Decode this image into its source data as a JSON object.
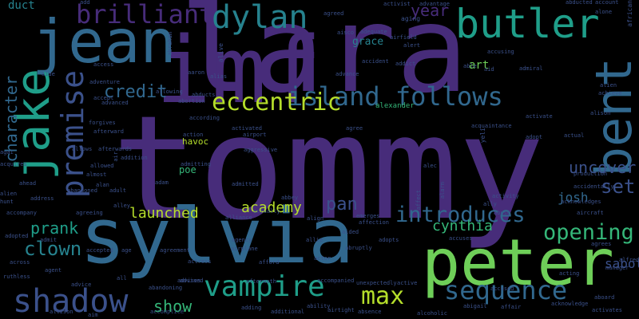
{
  "palette": {
    "purple": "#472c7a",
    "indigo": "#3b518b",
    "blue": "#31688e",
    "teal": "#26828e",
    "green": "#1f9e89",
    "mint": "#35b779",
    "lime": "#6ece58",
    "yellowgreen": "#b5de2b",
    "deep": "#440154"
  },
  "words": [
    {
      "text": "tommy",
      "color": "purple"
    },
    {
      "text": "lara",
      "color": "purple"
    },
    {
      "text": "imf",
      "color": "purple"
    },
    {
      "text": "sylvia",
      "color": "blue"
    },
    {
      "text": "peter",
      "color": "lime"
    },
    {
      "text": "jean",
      "color": "blue"
    },
    {
      "text": "jake",
      "color": "green"
    },
    {
      "text": "bent",
      "color": "blue"
    },
    {
      "text": "butler",
      "color": "green"
    },
    {
      "text": "dylan",
      "color": "teal"
    },
    {
      "text": "brilliant",
      "color": "purple"
    },
    {
      "text": "premise",
      "color": "indigo"
    },
    {
      "text": "island follows",
      "color": "blue"
    },
    {
      "text": "eccentric",
      "color": "yellowgreen"
    },
    {
      "text": "vampire",
      "color": "green"
    },
    {
      "text": "shadow",
      "color": "indigo"
    },
    {
      "text": "sequence",
      "color": "blue"
    },
    {
      "text": "introduces",
      "color": "blue"
    },
    {
      "text": "opening",
      "color": "mint"
    },
    {
      "text": "max",
      "color": "yellowgreen"
    },
    {
      "text": "uncover",
      "color": "indigo"
    },
    {
      "text": "credit",
      "color": "blue"
    },
    {
      "text": "character",
      "color": "blue"
    },
    {
      "text": "clown",
      "color": "teal"
    },
    {
      "text": "pan",
      "color": "indigo"
    },
    {
      "text": "year",
      "color": "purple"
    },
    {
      "text": "set",
      "color": "indigo"
    },
    {
      "text": "show",
      "color": "mint"
    },
    {
      "text": "prank",
      "color": "green"
    },
    {
      "text": "launched",
      "color": "yellowgreen"
    },
    {
      "text": "academy",
      "color": "yellowgreen"
    },
    {
      "text": "cynthia",
      "color": "mint"
    },
    {
      "text": "josh",
      "color": "blue"
    },
    {
      "text": "sabotage",
      "color": "indigo"
    },
    {
      "text": "duct",
      "color": "teal"
    },
    {
      "text": "grace",
      "color": "teal"
    },
    {
      "text": "art",
      "color": "lime"
    },
    {
      "text": "poe",
      "color": "mint"
    },
    {
      "text": "havoc",
      "color": "yellowgreen"
    },
    {
      "text": "alexander",
      "color": "mint"
    },
    {
      "text": "african",
      "color": "indigo"
    },
    {
      "text": "aging",
      "color": "indigo"
    },
    {
      "text": "activist",
      "color": "indigo"
    },
    {
      "text": "advantage",
      "color": "indigo"
    },
    {
      "text": "abducted",
      "color": "indigo"
    },
    {
      "text": "account",
      "color": "indigo"
    },
    {
      "text": "alone",
      "color": "indigo"
    },
    {
      "text": "agreed",
      "color": "indigo"
    },
    {
      "text": "airfield",
      "color": "indigo"
    },
    {
      "text": "alert",
      "color": "indigo"
    },
    {
      "text": "accident",
      "color": "indigo"
    },
    {
      "text": "accusing",
      "color": "indigo"
    },
    {
      "text": "admiral",
      "color": "indigo"
    },
    {
      "text": "able",
      "color": "indigo"
    },
    {
      "text": "aid",
      "color": "indigo"
    },
    {
      "text": "alien",
      "color": "indigo"
    },
    {
      "text": "achieve",
      "color": "indigo"
    },
    {
      "text": "alison",
      "color": "indigo"
    },
    {
      "text": "access",
      "color": "indigo"
    },
    {
      "text": "aide",
      "color": "indigo"
    },
    {
      "text": "addict",
      "color": "indigo"
    },
    {
      "text": "advance",
      "color": "indigo"
    },
    {
      "text": "alias",
      "color": "indigo"
    },
    {
      "text": "adventure",
      "color": "indigo"
    },
    {
      "text": "accept",
      "color": "indigo"
    },
    {
      "text": "advanced",
      "color": "indigo"
    },
    {
      "text": "abducts",
      "color": "indigo"
    },
    {
      "text": "allowing",
      "color": "indigo"
    },
    {
      "text": "abortion",
      "color": "indigo"
    },
    {
      "text": "activated",
      "color": "indigo"
    },
    {
      "text": "according",
      "color": "indigo"
    },
    {
      "text": "forgives",
      "color": "indigo"
    },
    {
      "text": "afterward",
      "color": "indigo"
    },
    {
      "text": "afterwards",
      "color": "indigo"
    },
    {
      "text": "allows",
      "color": "indigo"
    },
    {
      "text": "action",
      "color": "indigo"
    },
    {
      "text": "airport",
      "color": "indigo"
    },
    {
      "text": "agree",
      "color": "indigo"
    },
    {
      "text": "acquaintance",
      "color": "indigo"
    },
    {
      "text": "adopt",
      "color": "indigo"
    },
    {
      "text": "actual",
      "color": "indigo"
    },
    {
      "text": "activate",
      "color": "indigo"
    },
    {
      "text": "aggressive",
      "color": "indigo"
    },
    {
      "text": "acquires",
      "color": "indigo"
    },
    {
      "text": "addition",
      "color": "indigo"
    },
    {
      "text": "allowed",
      "color": "indigo"
    },
    {
      "text": "almost",
      "color": "indigo"
    },
    {
      "text": "alan",
      "color": "indigo"
    },
    {
      "text": "admitting",
      "color": "indigo"
    },
    {
      "text": "adam",
      "color": "indigo"
    },
    {
      "text": "admitted",
      "color": "indigo"
    },
    {
      "text": "abbey",
      "color": "indigo"
    },
    {
      "text": "activity",
      "color": "indigo"
    },
    {
      "text": "production",
      "color": "indigo"
    },
    {
      "text": "accidentally",
      "color": "indigo"
    },
    {
      "text": "ahead",
      "color": "indigo"
    },
    {
      "text": "alien",
      "color": "indigo"
    },
    {
      "text": "address",
      "color": "indigo"
    },
    {
      "text": "abandoned",
      "color": "indigo"
    },
    {
      "text": "adult",
      "color": "indigo"
    },
    {
      "text": "alley",
      "color": "indigo"
    },
    {
      "text": "abuse",
      "color": "indigo"
    },
    {
      "text": "acknowledges",
      "color": "indigo"
    },
    {
      "text": "aircraft",
      "color": "indigo"
    },
    {
      "text": "accompany",
      "color": "indigo"
    },
    {
      "text": "agreeing",
      "color": "indigo"
    },
    {
      "text": "alliance",
      "color": "indigo"
    },
    {
      "text": "actually",
      "color": "indigo"
    },
    {
      "text": "align",
      "color": "indigo"
    },
    {
      "text": "emerges",
      "color": "indigo"
    },
    {
      "text": "affection",
      "color": "indigo"
    },
    {
      "text": "accuses",
      "color": "indigo"
    },
    {
      "text": "agrees",
      "color": "indigo"
    },
    {
      "text": "adopted",
      "color": "indigo"
    },
    {
      "text": "admit",
      "color": "indigo"
    },
    {
      "text": "accepted",
      "color": "indigo"
    },
    {
      "text": "age",
      "color": "indigo"
    },
    {
      "text": "agreement",
      "color": "indigo"
    },
    {
      "text": "agency",
      "color": "indigo"
    },
    {
      "text": "allie",
      "color": "indigo"
    },
    {
      "text": "aided",
      "color": "indigo"
    },
    {
      "text": "adopts",
      "color": "indigo"
    },
    {
      "text": "airplane",
      "color": "indigo"
    },
    {
      "text": "abruptly",
      "color": "indigo"
    },
    {
      "text": "alfred",
      "color": "indigo"
    },
    {
      "text": "across",
      "color": "indigo"
    },
    {
      "text": "actress",
      "color": "indigo"
    },
    {
      "text": "afford",
      "color": "indigo"
    },
    {
      "text": "actor",
      "color": "indigo"
    },
    {
      "text": "advised",
      "color": "indigo"
    },
    {
      "text": "manager",
      "color": "indigo"
    },
    {
      "text": "ruthless",
      "color": "indigo"
    },
    {
      "text": "agent",
      "color": "indigo"
    },
    {
      "text": "advice",
      "color": "indigo"
    },
    {
      "text": "all",
      "color": "indigo"
    },
    {
      "text": "advises",
      "color": "indigo"
    },
    {
      "text": "aftermath",
      "color": "indigo"
    },
    {
      "text": "accompanied",
      "color": "indigo"
    },
    {
      "text": "unexpectedly",
      "color": "indigo"
    },
    {
      "text": "active",
      "color": "indigo"
    },
    {
      "text": "acting",
      "color": "indigo"
    },
    {
      "text": "aboard",
      "color": "indigo"
    },
    {
      "text": "abandoning",
      "color": "indigo"
    },
    {
      "text": "adding",
      "color": "indigo"
    },
    {
      "text": "ability",
      "color": "indigo"
    },
    {
      "text": "airtight",
      "color": "indigo"
    },
    {
      "text": "abigail",
      "color": "indigo"
    },
    {
      "text": "affair",
      "color": "indigo"
    },
    {
      "text": "acknowledge",
      "color": "indigo"
    },
    {
      "text": "activates",
      "color": "indigo"
    },
    {
      "text": "accused",
      "color": "indigo"
    },
    {
      "text": "allison",
      "color": "indigo"
    },
    {
      "text": "aim",
      "color": "indigo"
    },
    {
      "text": "accomplice",
      "color": "indigo"
    },
    {
      "text": "additional",
      "color": "indigo"
    },
    {
      "text": "absence",
      "color": "indigo"
    },
    {
      "text": "alcoholic",
      "color": "indigo"
    },
    {
      "text": "alive",
      "color": "indigo"
    },
    {
      "text": "abraham",
      "color": "indigo"
    },
    {
      "text": "yeli",
      "color": "indigo"
    },
    {
      "text": "aaron",
      "color": "indigo"
    },
    {
      "text": "agai",
      "color": "indigo"
    },
    {
      "text": "hunt",
      "color": "indigo"
    },
    {
      "text": "add",
      "color": "indigo"
    },
    {
      "text": "aisco",
      "color": "indigo"
    },
    {
      "text": "adequate",
      "color": "indigo"
    },
    {
      "text": "air",
      "color": "indigo"
    },
    {
      "text": "alec",
      "color": "indigo"
    },
    {
      "text": "ally",
      "color": "indigo"
    },
    {
      "text": "alarm",
      "color": "indigo"
    },
    {
      "text": "affect",
      "color": "indigo"
    }
  ]
}
